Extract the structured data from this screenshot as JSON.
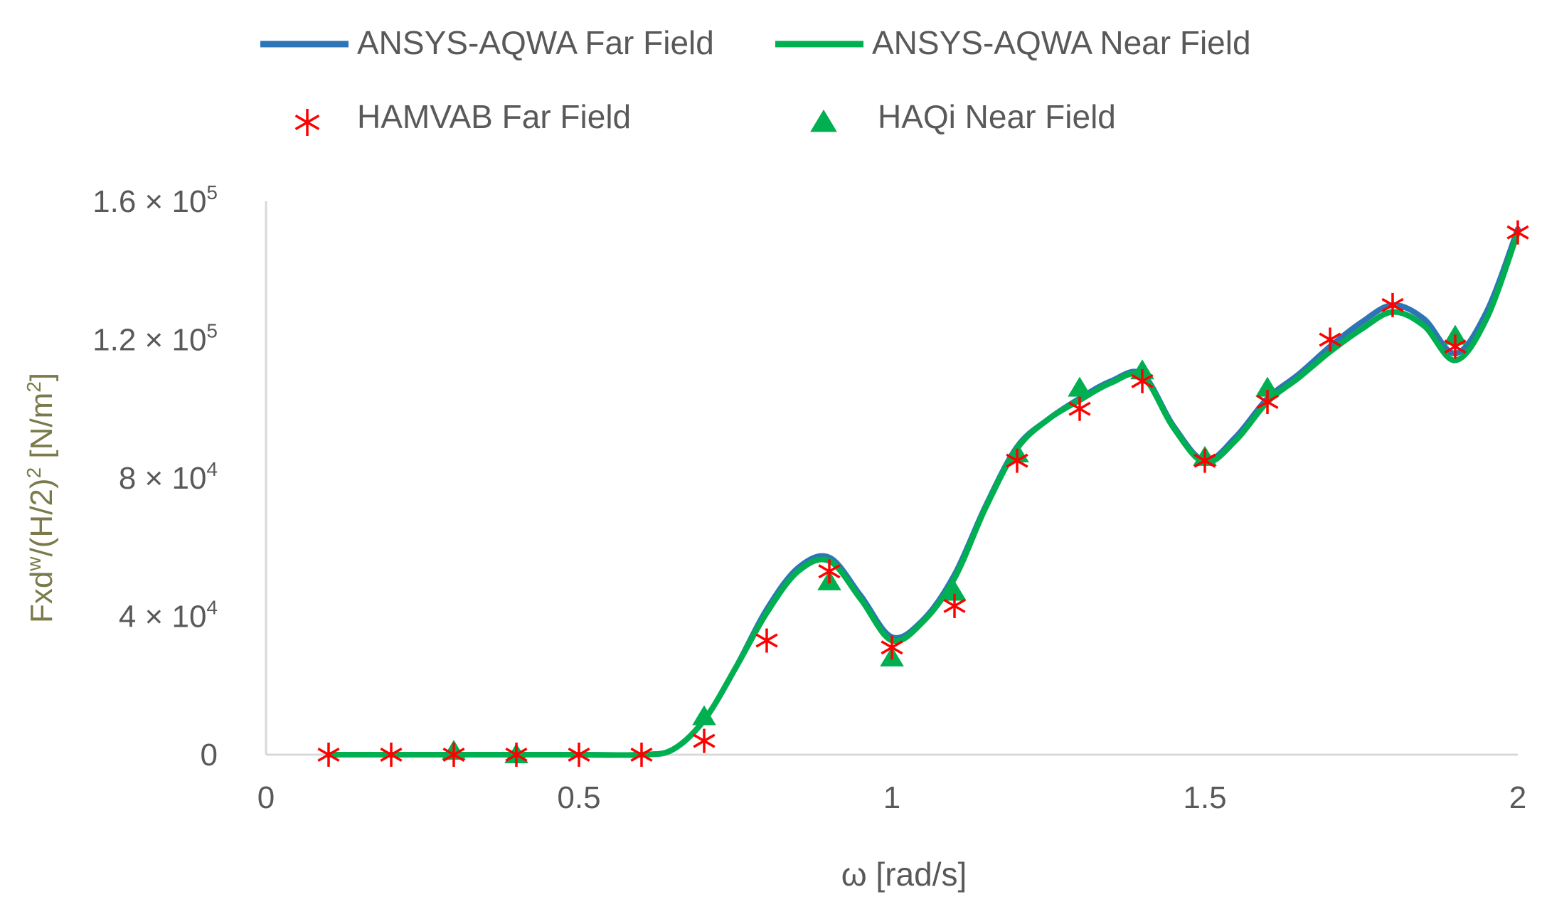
{
  "chart_data": {
    "type": "line",
    "xlabel": "ω [rad/s]",
    "ylabel": {
      "base": "Fxd",
      "sup1": "w",
      "mid": "/(H/2)",
      "sup2": "2",
      "unit_pre": " [N/m",
      "unit_sup": "2",
      "unit_post": "]"
    },
    "xlim": [
      0,
      2
    ],
    "ylim": [
      0,
      160000
    ],
    "x_ticks": [
      {
        "value": 0,
        "label": "0"
      },
      {
        "value": 0.5,
        "label": "0.5"
      },
      {
        "value": 1,
        "label": "1"
      },
      {
        "value": 1.5,
        "label": "1.5"
      },
      {
        "value": 2,
        "label": "2"
      }
    ],
    "y_ticks": [
      {
        "value": 0,
        "label": "0",
        "exp": ""
      },
      {
        "value": 40000,
        "label": "4 × 10",
        "exp": "4"
      },
      {
        "value": 80000,
        "label": "8 × 10",
        "exp": "4"
      },
      {
        "value": 120000,
        "label": "1.2 × 10",
        "exp": "5"
      },
      {
        "value": 160000,
        "label": "1.6 × 10",
        "exp": "5"
      }
    ],
    "legend_position": "top",
    "colors": {
      "far_line": "#2e75b6",
      "near_line": "#00b050",
      "far_marker": "#ff0000",
      "near_marker": "#00b050",
      "axis": "#d9d9d9"
    },
    "series": [
      {
        "name": "ANSYS-AQWA Far Field",
        "kind": "line",
        "x": [
          0.1,
          0.2,
          0.3,
          0.4,
          0.5,
          0.6,
          0.65,
          0.7,
          0.75,
          0.8,
          0.85,
          0.9,
          0.95,
          1.0,
          1.05,
          1.1,
          1.15,
          1.2,
          1.25,
          1.3,
          1.35,
          1.4,
          1.45,
          1.5,
          1.55,
          1.6,
          1.65,
          1.7,
          1.75,
          1.8,
          1.85,
          1.9,
          1.95,
          2.0
        ],
        "y": [
          0,
          0,
          0,
          0,
          0,
          0,
          1500,
          10000,
          25000,
          42000,
          54000,
          57000,
          46000,
          34000,
          39000,
          52000,
          72000,
          89000,
          97000,
          103000,
          108000,
          110000,
          95000,
          85000,
          92000,
          103000,
          110000,
          118000,
          125000,
          130000,
          126000,
          116000,
          128000,
          152000
        ]
      },
      {
        "name": "ANSYS-AQWA Near Field",
        "kind": "line",
        "x": [
          0.1,
          0.2,
          0.3,
          0.4,
          0.5,
          0.6,
          0.65,
          0.7,
          0.75,
          0.8,
          0.85,
          0.9,
          0.95,
          1.0,
          1.05,
          1.1,
          1.15,
          1.2,
          1.25,
          1.3,
          1.35,
          1.4,
          1.45,
          1.5,
          1.55,
          1.6,
          1.65,
          1.7,
          1.75,
          1.8,
          1.85,
          1.9,
          1.95,
          2.0
        ],
        "y": [
          0,
          0,
          0,
          0,
          0,
          0,
          1500,
          10000,
          25000,
          41000,
          53000,
          56000,
          45000,
          33000,
          38500,
          51000,
          71500,
          88500,
          97000,
          102500,
          107500,
          109500,
          94500,
          84500,
          91000,
          102000,
          109000,
          116500,
          123000,
          128000,
          124000,
          114000,
          126000,
          151000
        ]
      },
      {
        "name": "HAMVAB Far Field",
        "kind": "marker",
        "marker": "asterisk",
        "x": [
          0.1,
          0.2,
          0.3,
          0.4,
          0.5,
          0.6,
          0.7,
          0.8,
          0.9,
          1.0,
          1.1,
          1.2,
          1.3,
          1.4,
          1.5,
          1.6,
          1.7,
          1.8,
          1.9,
          2.0
        ],
        "y": [
          0,
          0,
          0,
          0,
          0,
          0,
          4000,
          33000,
          53000,
          31000,
          43000,
          85000,
          100000,
          108000,
          85000,
          102000,
          120000,
          130000,
          118000,
          151000
        ]
      },
      {
        "name": "HAQi Near Field",
        "kind": "marker",
        "marker": "triangle",
        "x": [
          0.3,
          0.4,
          0.7,
          0.9,
          1.0,
          1.1,
          1.2,
          1.3,
          1.4,
          1.5,
          1.6,
          1.9
        ],
        "y": [
          1000,
          0,
          11000,
          50000,
          28000,
          47000,
          87000,
          106000,
          111000,
          86000,
          106000,
          121000
        ]
      }
    ]
  }
}
